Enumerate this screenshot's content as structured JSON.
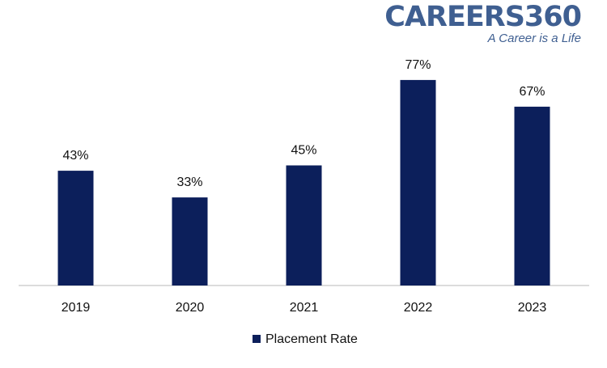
{
  "logo": {
    "name": "CAREERS360",
    "tagline": "A Career is a Life"
  },
  "colors": {
    "bar": "#0c1f5b",
    "axis": "#c8c8c8",
    "text": "#111111",
    "logo": "#3f5f91"
  },
  "chart_data": {
    "type": "bar",
    "title": "",
    "xlabel": "",
    "ylabel": "",
    "categories": [
      "2019",
      "2020",
      "2021",
      "2022",
      "2023"
    ],
    "series": [
      {
        "name": "Placement Rate",
        "values": [
          43,
          33,
          45,
          77,
          67
        ]
      }
    ],
    "data_labels": [
      "43%",
      "33%",
      "45%",
      "77%",
      "67%"
    ],
    "ylim": [
      0,
      80
    ],
    "grid": false,
    "legend": "bottom"
  }
}
